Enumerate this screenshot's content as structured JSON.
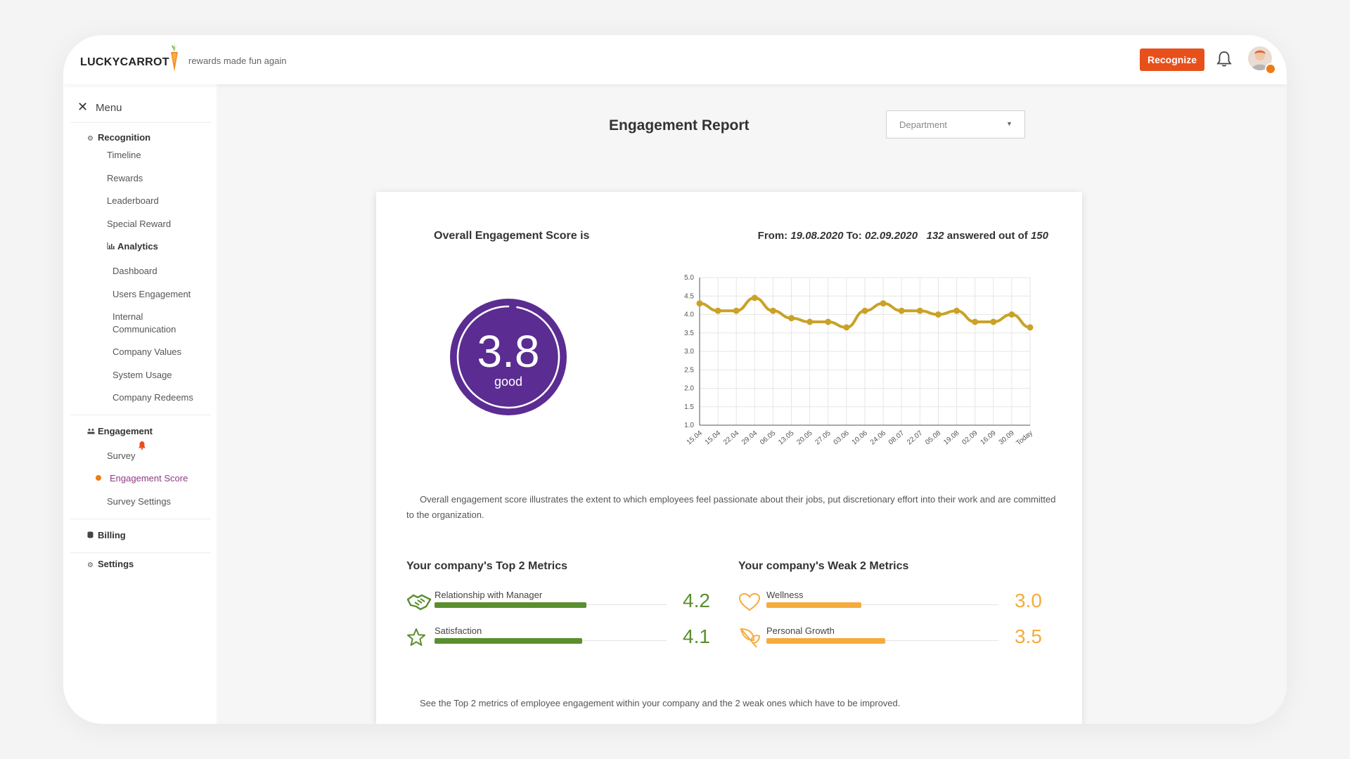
{
  "app": {
    "brand": "LUCKYCARROT",
    "tagline": "rewards made fun again",
    "recognize_label": "Recognize"
  },
  "icons": {
    "brand": "carrot-icon",
    "notifications": "bell-icon",
    "close": "close-icon",
    "recognition": "gear-icon",
    "analytics": "bar-chart-icon",
    "engagement": "people-icon",
    "billing": "database-icon",
    "settings": "gear-icon"
  },
  "sidebar": {
    "menu_label": "Menu",
    "recognition": {
      "label": "Recognition",
      "items": [
        "Timeline",
        "Rewards",
        "Leaderboard",
        "Special Reward"
      ]
    },
    "analytics": {
      "label": "Analytics",
      "items": [
        "Dashboard",
        "Users Engagement",
        "Internal Communication",
        "Company Values",
        "System Usage",
        "Company Redeems"
      ]
    },
    "engagement": {
      "label": "Engagement",
      "items": [
        "Survey",
        "Engagement Score",
        "Survey Settings"
      ],
      "active": "Engagement Score"
    },
    "billing_label": "Billing",
    "settings_label": "Settings"
  },
  "report": {
    "title": "Engagement Report",
    "department_placeholder": "Department",
    "score_title": "Overall Engagement Score is",
    "range_from_label": "From:",
    "range_from": "19.08.2020",
    "range_to_label": "To:",
    "range_to": "02.09.2020",
    "answered": "132",
    "answered_label": "answered out of",
    "total": "150",
    "score": "3.8",
    "score_label": "good",
    "description": "Overall engagement score illustrates the extent to which employees feel passionate about their jobs, put discretionary effort into their work and are committed to the organization.",
    "top_title": "Your company's Top 2 Metrics",
    "weak_title": "Your company's Weak 2 Metrics",
    "top_metrics": [
      {
        "label": "Relationship with Manager",
        "value": "4.2",
        "icon": "handshake-icon"
      },
      {
        "label": "Satisfaction",
        "value": "4.1",
        "icon": "star-icon"
      }
    ],
    "weak_metrics": [
      {
        "label": "Wellness",
        "value": "3.0",
        "icon": "heart-icon"
      },
      {
        "label": "Personal Growth",
        "value": "3.5",
        "icon": "leaf-icon"
      }
    ],
    "footer_note": "See the Top 2 metrics of employee engagement within your company and the 2 weak ones which have to be improved."
  },
  "chart_data": {
    "type": "line",
    "categories": [
      "15.04",
      "15.04",
      "22.04",
      "29.04",
      "06.05",
      "13.05",
      "20.05",
      "27.05",
      "03.06",
      "10.06",
      "24.06",
      "08.07",
      "22.07",
      "05.08",
      "19.08",
      "02.09",
      "16.09",
      "30.09",
      "Today"
    ],
    "series": [
      {
        "values": [
          4.3,
          4.1,
          4.1,
          4.45,
          4.1,
          3.9,
          3.8,
          3.8,
          3.65,
          4.1,
          4.3,
          4.1,
          4.1,
          4.0,
          4.1,
          3.8,
          3.8,
          4.0,
          3.65
        ]
      }
    ],
    "yticks": [
      "5.0",
      "4.5",
      "4.0",
      "3.5",
      "3.0",
      "2.5",
      "2.0",
      "1.5",
      "1.0"
    ],
    "ylim": [
      1,
      5
    ],
    "grid": true,
    "color": "#c9a227"
  },
  "colors": {
    "accent": "#e8501b",
    "purple": "#5b2c91",
    "green": "#5a8f2e",
    "orange": "#f5ac3c",
    "active_menu": "#8e3b86"
  }
}
